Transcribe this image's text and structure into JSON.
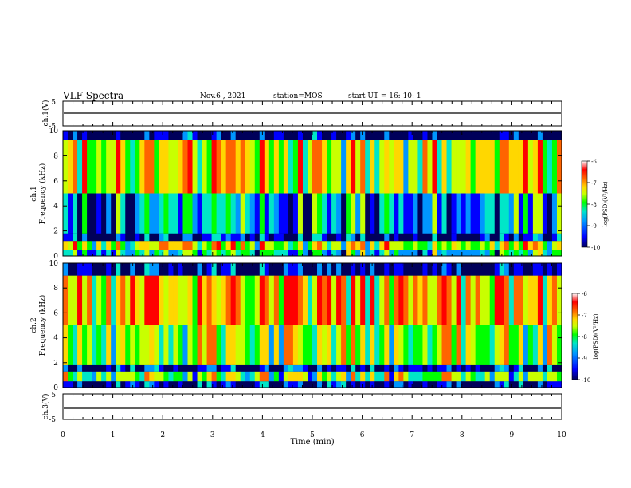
{
  "header": {
    "title": "VLF Spectra",
    "date": "Nov.6 , 2021",
    "station": "station=MOS",
    "start": "start UT = 16: 10: 1"
  },
  "panels": {
    "ch1_waveform_label": "ch.1(V)",
    "ch1_spec_label_1": "ch.1",
    "ch1_spec_label_2": "Frequency (kHz)",
    "ch2_spec_label_1": "ch.2",
    "ch2_spec_label_2": "Frequency (kHz)",
    "ch3_waveform_label": "ch.3(V)",
    "wave_ticks": [
      "5",
      "-5"
    ],
    "freq_ticks": [
      "0",
      "2",
      "4",
      "6",
      "8",
      "10"
    ]
  },
  "colorbar": {
    "label": "log(PSD)(V²/Hz)",
    "ticks": [
      "-6",
      "-7",
      "-8",
      "-9",
      "-10"
    ]
  },
  "colors": {
    "scale": [
      "#00005a",
      "#0000ff",
      "#0096ff",
      "#00e6c8",
      "#00ff00",
      "#c8ff00",
      "#ffd700",
      "#ff6400",
      "#ff0000",
      "#ffffff"
    ]
  },
  "chart_data": {
    "type": "heatmap",
    "title": "VLF Spectra",
    "xlabel": "Time (min)",
    "x_ticks": [
      "0",
      "1",
      "2",
      "3",
      "4",
      "5",
      "6",
      "7",
      "8",
      "9",
      "10"
    ],
    "xlim": [
      0,
      10
    ],
    "ylabel": "Frequency (kHz)",
    "ylim": [
      0,
      10
    ],
    "zlabel": "log(PSD)(V²/Hz)",
    "zlim": [
      -10,
      -6
    ],
    "channels": [
      {
        "name": "ch.1",
        "typical_log_psd_by_band": [
          {
            "freq_khz": [
              0,
              0.5
            ],
            "log_psd": -8.5
          },
          {
            "freq_khz": [
              0.5,
              1.2
            ],
            "log_psd": -7.5
          },
          {
            "freq_khz": [
              1.2,
              1.8
            ],
            "log_psd": -9.6
          },
          {
            "freq_khz": [
              1.8,
              5
            ],
            "log_psd": -8.8
          },
          {
            "freq_khz": [
              5,
              9.3
            ],
            "log_psd": -7.4
          },
          {
            "freq_khz": [
              9.3,
              10
            ],
            "log_psd": -9.9
          }
        ]
      },
      {
        "name": "ch.2",
        "typical_log_psd_by_band": [
          {
            "freq_khz": [
              0,
              0.5
            ],
            "log_psd": -9.8
          },
          {
            "freq_khz": [
              0.5,
              1.3
            ],
            "log_psd": -8.0
          },
          {
            "freq_khz": [
              1.3,
              1.8
            ],
            "log_psd": -9.7
          },
          {
            "freq_khz": [
              1.8,
              5
            ],
            "log_psd": -7.8
          },
          {
            "freq_khz": [
              5,
              9
            ],
            "log_psd": -7.2
          },
          {
            "freq_khz": [
              9,
              10
            ],
            "log_psd": -9.9
          }
        ]
      }
    ],
    "waveforms": [
      {
        "name": "ch.1(V)",
        "ylim": [
          -5,
          5
        ],
        "baseline": 0
      },
      {
        "name": "ch.3(V)",
        "ylim": [
          -5,
          5
        ],
        "baseline": 0
      }
    ]
  }
}
